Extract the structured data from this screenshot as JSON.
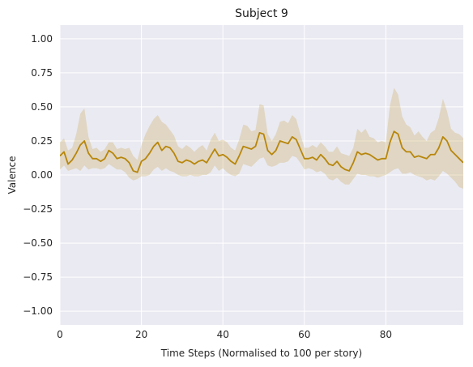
{
  "chart_data": {
    "type": "line",
    "title": "Subject 9",
    "xlabel": "Time Steps (Normalised to 100 per story)",
    "ylabel": "Valence",
    "xlim": [
      0,
      99
    ],
    "ylim": [
      -1.1,
      1.1
    ],
    "x_ticks": [
      0,
      20,
      40,
      60,
      80
    ],
    "y_ticks": [
      1.0,
      0.75,
      0.5,
      0.25,
      0.0,
      -0.25,
      -0.5,
      -0.75,
      -1.0
    ],
    "x_tick_labels": [
      "0",
      "20",
      "40",
      "60",
      "80"
    ],
    "y_tick_labels": [
      "1.00",
      "0.75",
      "0.50",
      "0.25",
      "0.00",
      "−0.25",
      "−0.50",
      "−0.75",
      "−1.00"
    ],
    "grid": true,
    "background_color": "#eaeaf2",
    "line_color": "#b8860b",
    "band_color": "#b8860b",
    "series": [
      {
        "x": [
          0,
          1,
          2,
          3,
          4,
          5,
          6,
          7,
          8,
          9,
          10,
          11,
          12,
          13,
          14,
          15,
          16,
          17,
          18,
          19,
          20,
          21,
          22,
          23,
          24,
          25,
          26,
          27,
          28,
          29,
          30,
          31,
          32,
          33,
          34,
          35,
          36,
          37,
          38,
          39,
          40,
          41,
          42,
          43,
          44,
          45,
          46,
          47,
          48,
          49,
          50,
          51,
          52,
          53,
          54,
          55,
          56,
          57,
          58,
          59,
          60,
          61,
          62,
          63,
          64,
          65,
          66,
          67,
          68,
          69,
          70,
          71,
          72,
          73,
          74,
          75,
          76,
          77,
          78,
          79,
          80,
          81,
          82,
          83,
          84,
          85,
          86,
          87,
          88,
          89,
          90,
          91,
          92,
          93,
          94,
          95,
          96,
          97,
          98,
          99
        ],
        "y": [
          0.14,
          0.17,
          0.08,
          0.11,
          0.16,
          0.22,
          0.25,
          0.16,
          0.12,
          0.12,
          0.1,
          0.12,
          0.18,
          0.16,
          0.12,
          0.13,
          0.12,
          0.09,
          0.03,
          0.02,
          0.1,
          0.12,
          0.16,
          0.21,
          0.24,
          0.18,
          0.21,
          0.2,
          0.16,
          0.1,
          0.09,
          0.11,
          0.1,
          0.08,
          0.1,
          0.11,
          0.09,
          0.14,
          0.19,
          0.14,
          0.15,
          0.13,
          0.1,
          0.08,
          0.14,
          0.21,
          0.2,
          0.19,
          0.21,
          0.31,
          0.3,
          0.18,
          0.15,
          0.18,
          0.25,
          0.24,
          0.23,
          0.28,
          0.26,
          0.19,
          0.12,
          0.12,
          0.13,
          0.11,
          0.15,
          0.12,
          0.08,
          0.07,
          0.1,
          0.06,
          0.04,
          0.03,
          0.09,
          0.17,
          0.15,
          0.16,
          0.15,
          0.13,
          0.11,
          0.12,
          0.12,
          0.24,
          0.32,
          0.3,
          0.2,
          0.17,
          0.17,
          0.13,
          0.14,
          0.13,
          0.12,
          0.15,
          0.15,
          0.2,
          0.28,
          0.25,
          0.18,
          0.15,
          0.12,
          0.09
        ],
        "lower": [
          0.04,
          0.07,
          0.03,
          0.04,
          0.05,
          0.03,
          0.07,
          0.04,
          0.05,
          0.05,
          0.04,
          0.05,
          0.08,
          0.06,
          0.04,
          0.04,
          0.02,
          -0.02,
          -0.04,
          -0.03,
          -0.01,
          -0.01,
          0.0,
          0.04,
          0.06,
          0.03,
          0.05,
          0.03,
          0.02,
          0.0,
          -0.01,
          -0.01,
          0.0,
          -0.01,
          -0.01,
          0.0,
          0.0,
          0.02,
          0.07,
          0.03,
          0.05,
          0.02,
          0.0,
          -0.01,
          0.01,
          0.08,
          0.07,
          0.06,
          0.09,
          0.12,
          0.13,
          0.07,
          0.06,
          0.07,
          0.09,
          0.09,
          0.1,
          0.14,
          0.13,
          0.09,
          0.04,
          0.05,
          0.04,
          0.02,
          0.03,
          0.01,
          -0.03,
          -0.04,
          -0.02,
          -0.05,
          -0.07,
          -0.07,
          -0.03,
          0.01,
          0.0,
          0.0,
          -0.01,
          -0.01,
          -0.02,
          -0.01,
          0.0,
          0.02,
          0.04,
          0.05,
          0.01,
          0.01,
          0.02,
          0.0,
          -0.01,
          -0.02,
          -0.04,
          -0.03,
          -0.04,
          -0.01,
          0.03,
          0.01,
          -0.02,
          -0.05,
          -0.09,
          -0.1
        ],
        "upper": [
          0.24,
          0.27,
          0.18,
          0.2,
          0.3,
          0.45,
          0.49,
          0.28,
          0.19,
          0.2,
          0.17,
          0.19,
          0.24,
          0.24,
          0.19,
          0.2,
          0.19,
          0.2,
          0.14,
          0.11,
          0.22,
          0.3,
          0.36,
          0.41,
          0.44,
          0.39,
          0.37,
          0.33,
          0.29,
          0.21,
          0.19,
          0.22,
          0.2,
          0.17,
          0.2,
          0.22,
          0.18,
          0.26,
          0.31,
          0.25,
          0.26,
          0.24,
          0.2,
          0.18,
          0.26,
          0.37,
          0.36,
          0.32,
          0.33,
          0.52,
          0.51,
          0.3,
          0.25,
          0.3,
          0.39,
          0.4,
          0.38,
          0.44,
          0.41,
          0.3,
          0.2,
          0.2,
          0.22,
          0.2,
          0.24,
          0.21,
          0.17,
          0.17,
          0.21,
          0.16,
          0.15,
          0.14,
          0.2,
          0.34,
          0.31,
          0.34,
          0.28,
          0.27,
          0.24,
          0.25,
          0.24,
          0.51,
          0.64,
          0.59,
          0.43,
          0.37,
          0.35,
          0.29,
          0.32,
          0.28,
          0.25,
          0.31,
          0.33,
          0.42,
          0.56,
          0.47,
          0.34,
          0.31,
          0.3,
          0.27
        ]
      }
    ]
  }
}
